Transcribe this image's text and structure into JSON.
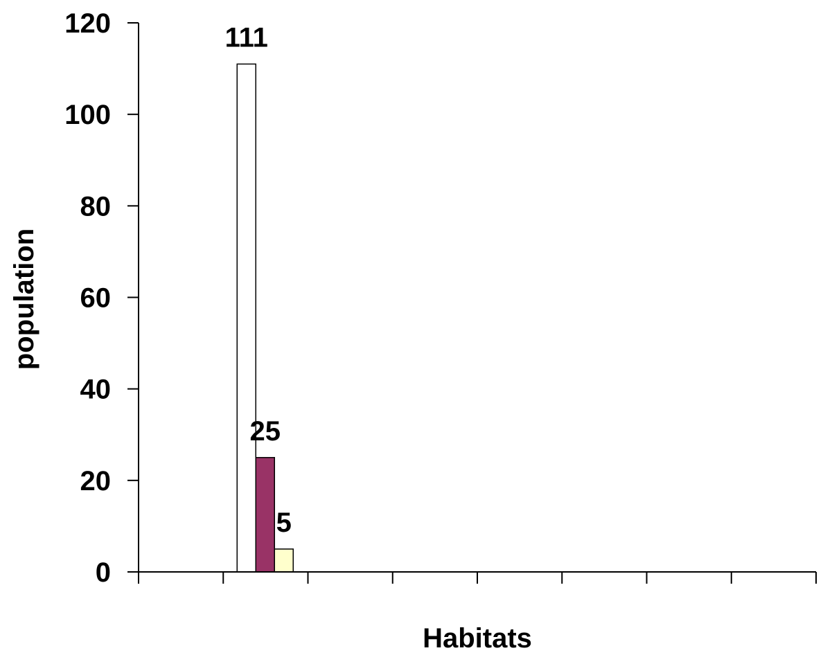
{
  "chart_data": {
    "type": "bar",
    "xlabel": "Habitats",
    "ylabel": "population",
    "ylim": [
      0,
      120
    ],
    "yticks": [
      0,
      20,
      40,
      60,
      80,
      100,
      120
    ],
    "category_slots": 8,
    "categories": [
      "",
      "",
      "",
      "",
      "",
      "",
      "",
      ""
    ],
    "bars": [
      {
        "slot": 1,
        "offset": 0,
        "value": 111,
        "label": "111",
        "color": "#ffffff"
      },
      {
        "slot": 1,
        "offset": 1,
        "value": 25,
        "label": "25",
        "color": "#993366"
      },
      {
        "slot": 1,
        "offset": 2,
        "value": 5,
        "label": "5",
        "color": "#ffffcc"
      }
    ],
    "grid": false,
    "legend": "none",
    "colors": {
      "axis": "#000000",
      "bar_outline": "#000000"
    }
  }
}
